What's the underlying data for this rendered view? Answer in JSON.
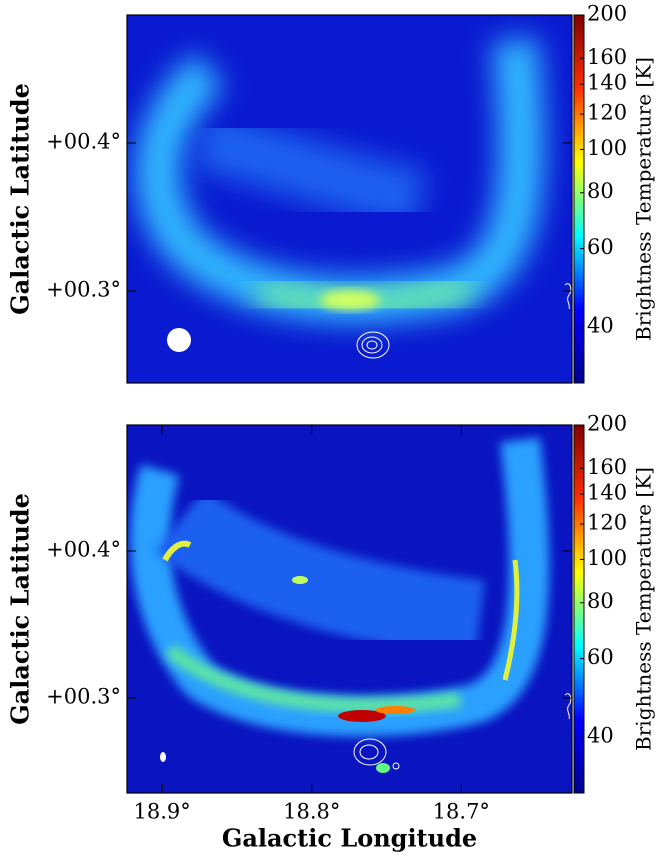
{
  "chart_data": [
    {
      "type": "image",
      "ylabel": "Galactic Latitude",
      "ylim": [
        0.2378,
        0.4865
      ],
      "yticks": [
        {
          "value": 0.4,
          "label": "+00.4°"
        },
        {
          "value": 0.3,
          "label": "+00.3°"
        }
      ],
      "xlim": [
        18.9235,
        18.626
      ],
      "colorbar": {
        "label": "Brightness Temperature [K]",
        "scale": "log",
        "lim": [
          30,
          200
        ],
        "ticks": [
          40,
          60,
          80,
          100,
          120,
          140,
          160,
          200
        ]
      }
    },
    {
      "type": "image",
      "ylabel": "Galactic Latitude",
      "xlabel": "Galactic Longitude",
      "ylim": [
        0.2354,
        0.4857
      ],
      "yticks": [
        {
          "value": 0.4,
          "label": "+00.4°"
        },
        {
          "value": 0.3,
          "label": "+00.3°"
        }
      ],
      "xlim": [
        18.9235,
        18.626
      ],
      "xticks": [
        {
          "value": 18.9,
          "label": "18.9°"
        },
        {
          "value": 18.8,
          "label": "18.8°"
        },
        {
          "value": 18.7,
          "label": "18.7°"
        }
      ],
      "colorbar": {
        "label": "Brightness Temperature [K]",
        "scale": "log",
        "lim": [
          30,
          200
        ],
        "ticks": [
          40,
          60,
          80,
          100,
          120,
          140,
          160,
          200
        ]
      }
    }
  ]
}
